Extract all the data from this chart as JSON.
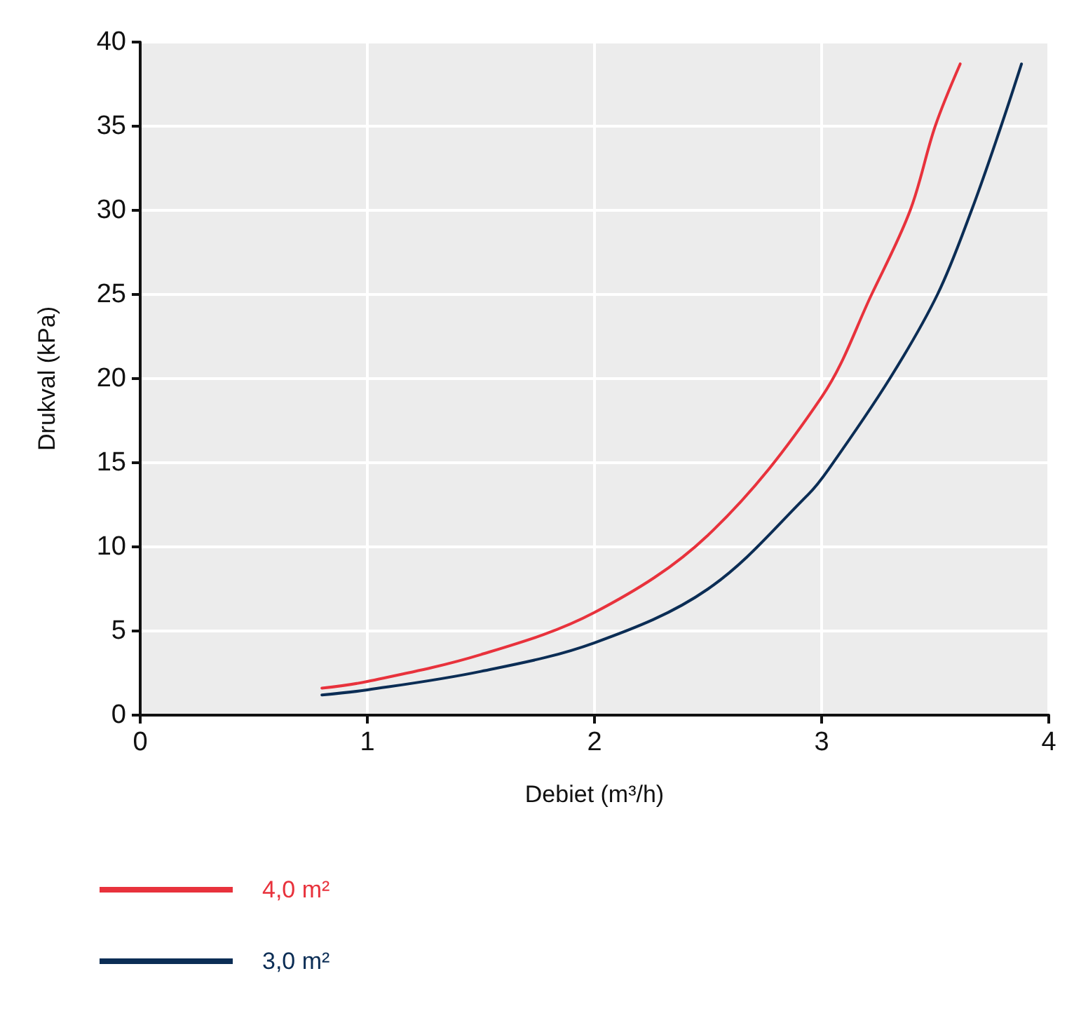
{
  "chart_data": {
    "type": "line",
    "xlabel": "Debiet (m³/h)",
    "ylabel": "Drukval (kPa)",
    "xlim": [
      0,
      4
    ],
    "xticks": [
      0,
      1,
      2,
      3,
      4
    ],
    "ylim": [
      0,
      40
    ],
    "yticks": [
      0,
      5,
      10,
      15,
      20,
      25,
      30,
      35,
      40
    ],
    "grid": true,
    "legend": "bottom left",
    "marker": "none",
    "line_style": "solid",
    "series": [
      {
        "name": "4,0 m²",
        "color": "#e8323c",
        "x": [
          0.8,
          1,
          1.5,
          2,
          2.5,
          3,
          3.22,
          3.39,
          3.5,
          3.61
        ],
        "values": [
          1.6,
          2.0,
          3.6,
          6.1,
          10.7,
          18.9,
          25,
          30,
          35,
          38.7
        ]
      },
      {
        "name": "3,0 m²",
        "color": "#0b2d55",
        "x": [
          0.8,
          1,
          1.5,
          2,
          2.5,
          2.94,
          3.03,
          3.3,
          3.51,
          3.66,
          3.79,
          3.88
        ],
        "values": [
          1.2,
          1.5,
          2.6,
          4.3,
          7.5,
          13.1,
          14.6,
          20,
          25,
          30,
          35,
          38.7
        ]
      }
    ]
  }
}
